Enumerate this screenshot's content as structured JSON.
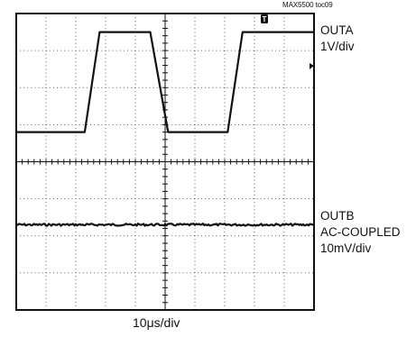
{
  "caption": "MAX5500 toc09",
  "channel_a": {
    "name": "OUTA",
    "scale": "1V/div"
  },
  "channel_b": {
    "name": "OUTB",
    "mode": "AC-COUPLED",
    "scale": "10mV/div"
  },
  "timebase": "10μs/div",
  "chart_data": {
    "type": "line",
    "title": "",
    "xlabel": "10μs/div",
    "ylabel": "",
    "divisions": {
      "x": 10,
      "y": 8
    },
    "xlim": [
      0,
      10
    ],
    "ylim": [
      0,
      8
    ],
    "grid": true,
    "trigger_marker": "T",
    "series": [
      {
        "name": "OUTA",
        "scale": "1V/div",
        "x": [
          0,
          2.3,
          2.8,
          4.5,
          5.1,
          7.1,
          7.6,
          10
        ],
        "y": [
          4.8,
          4.8,
          7.5,
          7.5,
          4.8,
          4.8,
          7.5,
          7.5
        ]
      },
      {
        "name": "OUTB",
        "scale": "10mV/div",
        "x": [
          0,
          10
        ],
        "y": [
          2.3,
          2.3
        ],
        "noise": "small"
      }
    ]
  }
}
